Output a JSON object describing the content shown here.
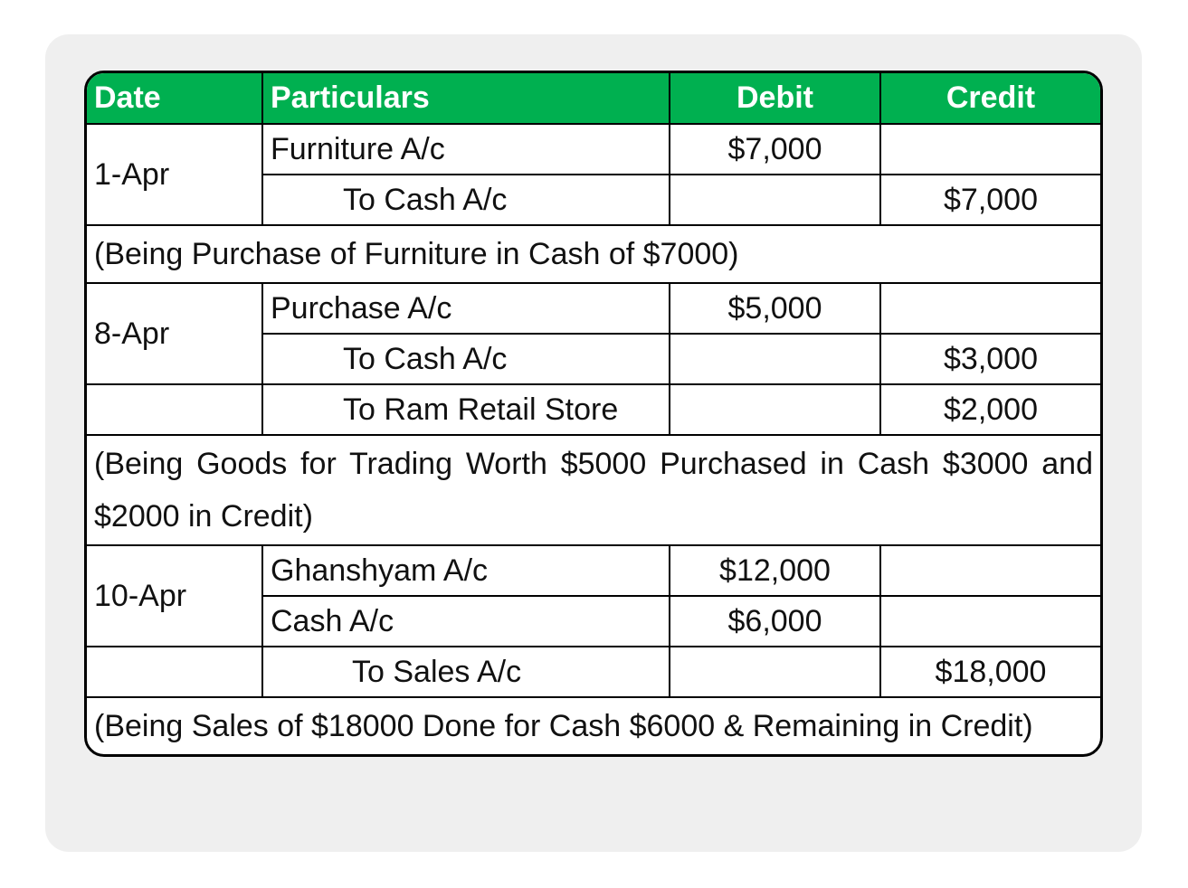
{
  "header": {
    "date": "Date",
    "particulars": "Particulars",
    "debit": "Debit",
    "credit": "Credit"
  },
  "entries": [
    {
      "date": "1-Apr",
      "lines": [
        {
          "particulars": "Furniture A/c",
          "debit": "$7,000",
          "credit": ""
        },
        {
          "particulars": "To Cash A/c",
          "debit": "",
          "credit": "$7,000"
        }
      ],
      "narration": "(Being Purchase of Furniture in Cash of $7000)"
    },
    {
      "date": "8-Apr",
      "lines": [
        {
          "particulars": "Purchase A/c",
          "debit": "$5,000",
          "credit": ""
        },
        {
          "particulars": "To Cash A/c",
          "debit": "",
          "credit": "$3,000"
        },
        {
          "particulars": "To Ram Retail Store",
          "debit": "",
          "credit": "$2,000"
        }
      ],
      "narration": "(Being Goods for Trading Worth $5000 Purchased in Cash $3000 and $2000 in Credit)"
    },
    {
      "date": "10-Apr",
      "lines": [
        {
          "particulars": "Ghanshyam A/c",
          "debit": "$12,000",
          "credit": ""
        },
        {
          "particulars": "Cash A/c",
          "debit": "$6,000",
          "credit": ""
        },
        {
          "particulars": "To Sales A/c",
          "debit": "",
          "credit": "$18,000"
        }
      ],
      "narration": "(Being Sales of $18000 Done for Cash $6000 & Remaining in Credit)"
    }
  ],
  "colors": {
    "header_bg": "#00b050",
    "header_text": "#ffffff",
    "card_bg": "#efefef"
  }
}
